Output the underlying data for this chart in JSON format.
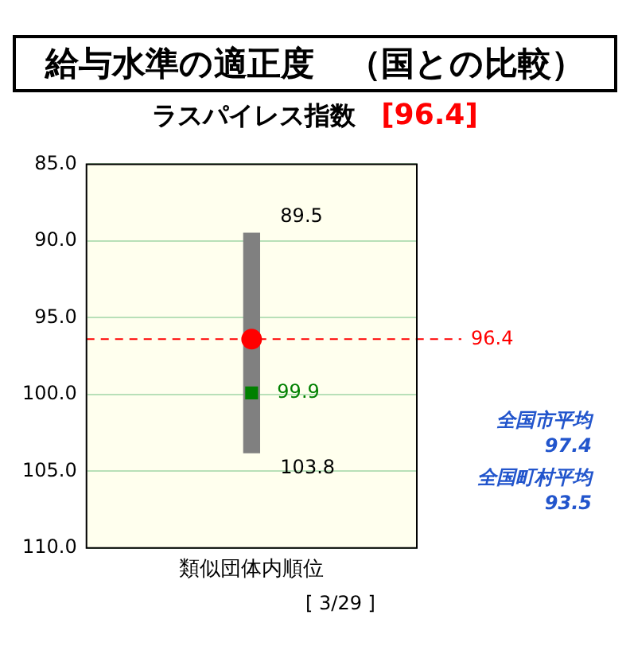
{
  "chart_data": {
    "type": "bar",
    "title": "給与水準の適正度　（国との比較）",
    "subtitle": "ラスパイレス指数　[96.4]",
    "xlabel": "類似団体内順位",
    "categories": [
      null
    ],
    "series": [
      {
        "color": "#808080",
        "base": [
          89.5
        ],
        "values": [
          14.3
        ]
      },
      {
        "type": "scatter",
        "color": "#008000",
        "marker": "square",
        "values": [
          99.9
        ],
        "value_labels": [
          "99.9"
        ]
      },
      {
        "type": "scatter",
        "color": "#ff0000",
        "marker": "circle",
        "values": [
          96.4
        ]
      }
    ],
    "ylim": [
      110,
      85
    ],
    "yticks": [
      {
        "value": 85,
        "label": "85.0"
      },
      {
        "value": 90,
        "label": "90.0"
      },
      {
        "value": 95,
        "label": "95.0"
      },
      {
        "value": 100,
        "label": "100.0"
      },
      {
        "value": 105,
        "label": "105.0"
      },
      {
        "value": 110,
        "label": "110.0"
      }
    ],
    "grid": "y",
    "tick_labels": "y",
    "ref_lines": [
      {
        "axis": "y",
        "value": 96.4,
        "label": "96.4",
        "color": "#ff0000",
        "line_style": "dashed"
      }
    ],
    "annotations": [
      "89.5",
      "103.8",
      "[ 3/29 ]",
      "全国市平均",
      "97.4",
      "全国町村平均",
      "93.5"
    ]
  }
}
